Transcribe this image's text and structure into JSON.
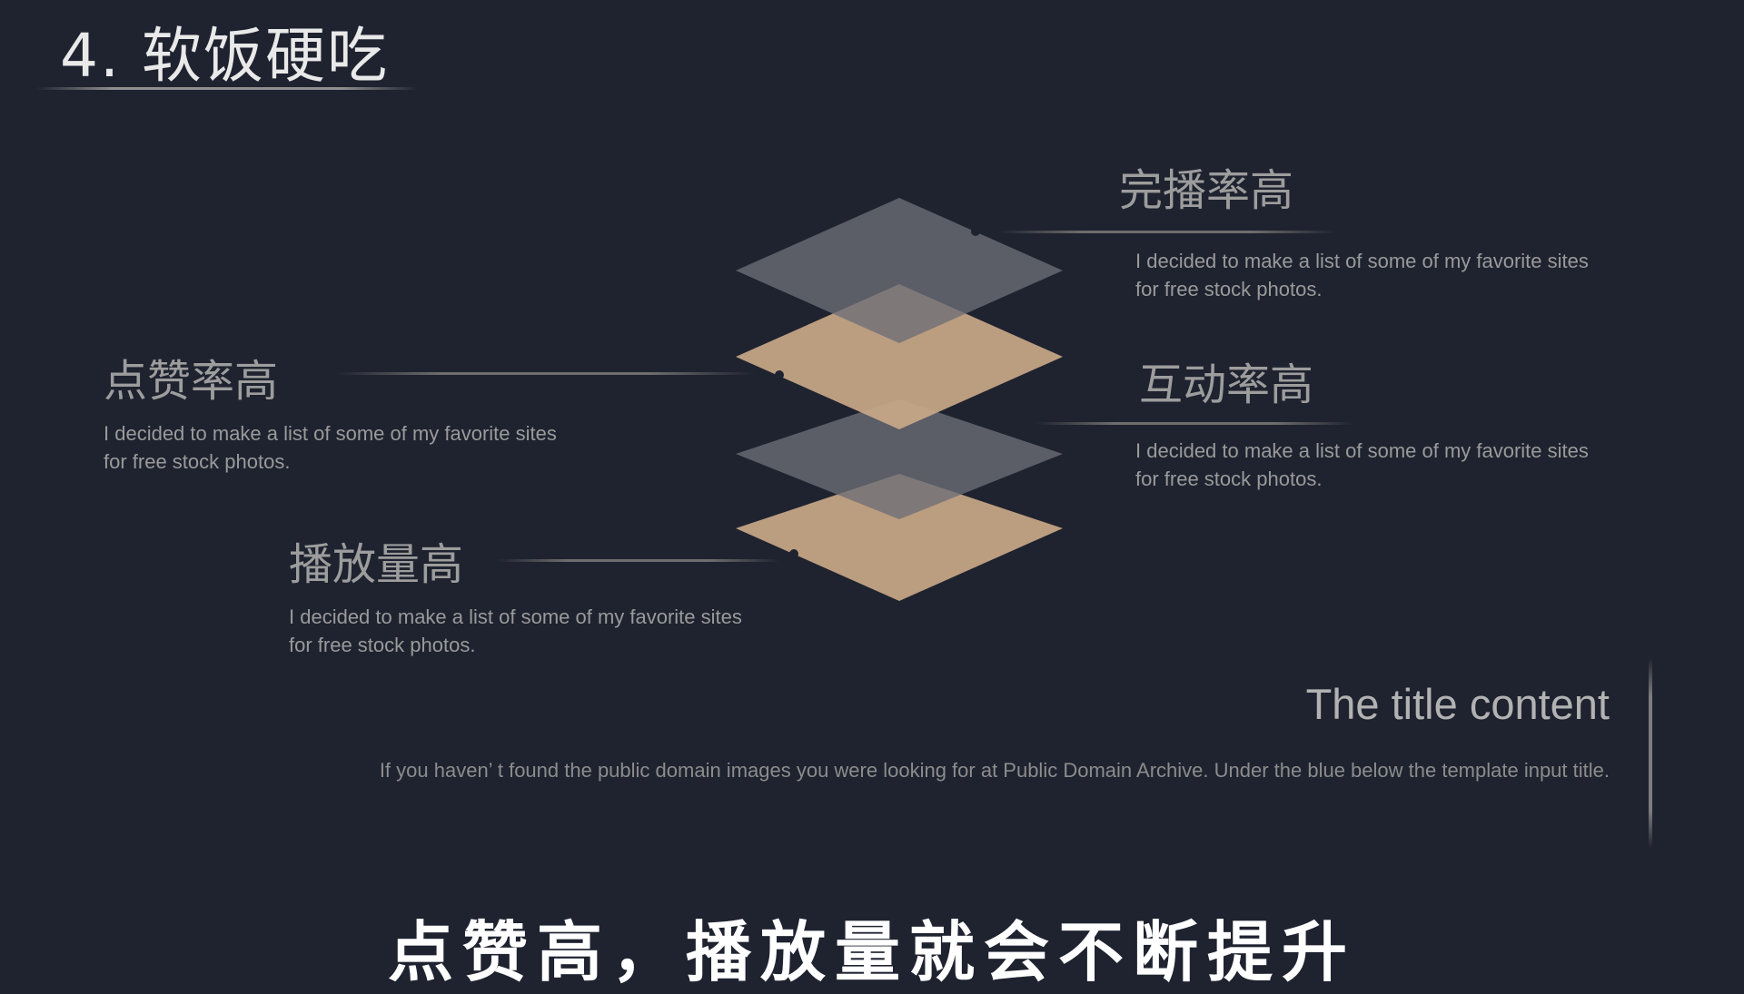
{
  "slide": {
    "title": "4. 软饭硬吃"
  },
  "features": [
    {
      "heading": "完播率高",
      "text_line1": "I decided to make a list of some of my favorite sites",
      "text_line2": "for free stock photos."
    },
    {
      "heading": "点赞率高",
      "text_line1": "I decided to make a list of some of my favorite sites",
      "text_line2": "for free stock photos."
    },
    {
      "heading": "互动率高",
      "text_line1": "I decided to make a list of some of my favorite sites",
      "text_line2": "for free stock photos."
    },
    {
      "heading": "播放量高",
      "text_line1": "I decided to make a list of some of my favorite sites",
      "text_line2": "for free stock photos."
    }
  ],
  "summary": {
    "title": "The title content",
    "text": "If you haven’ t found the public domain images you were looking for at Public Domain Archive. Under the blue below the template input title."
  },
  "caption": {
    "text": "点赞高，播放量就会不断提升"
  },
  "colors": {
    "background": "#1f2330",
    "layer_gray": "#6d6e77",
    "layer_tan": "#c9a888"
  }
}
